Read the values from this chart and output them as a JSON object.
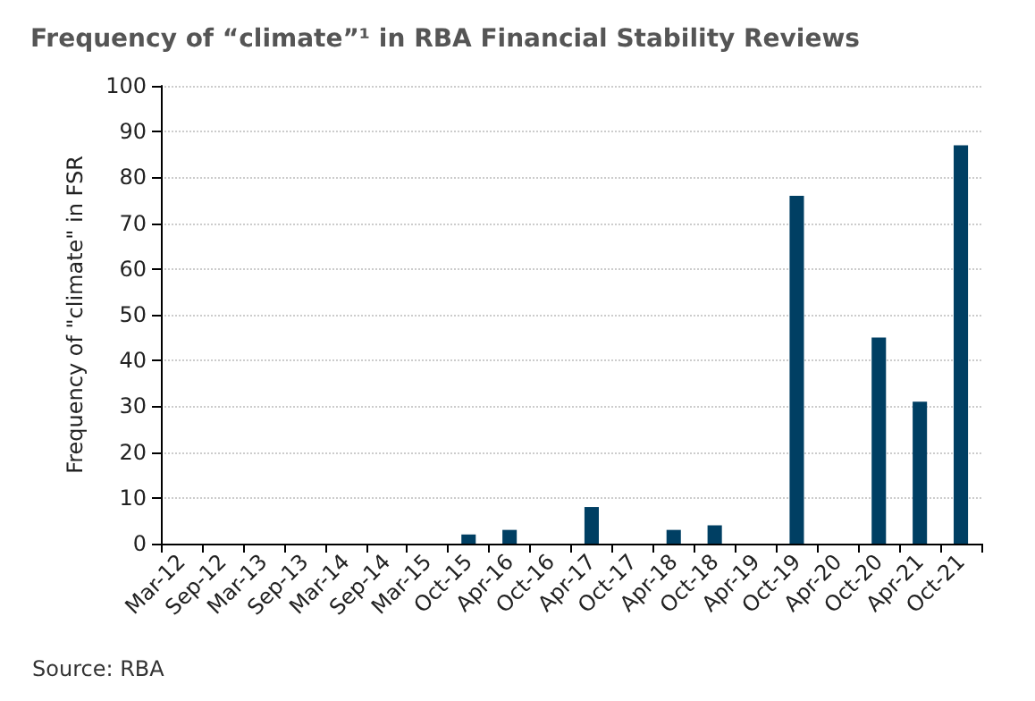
{
  "chart_data": {
    "type": "bar",
    "title": "Frequency of “climate”¹ in RBA Financial Stability Reviews",
    "ylabel": "Frequency of \"climate\" in FSR",
    "categories": [
      "Mar-12",
      "Sep-12",
      "Mar-13",
      "Sep-13",
      "Mar-14",
      "Sep-14",
      "Mar-15",
      "Oct-15",
      "Apr-16",
      "Oct-16",
      "Apr-17",
      "Oct-17",
      "Apr-18",
      "Oct-18",
      "Apr-19",
      "Oct-19",
      "Apr-20",
      "Oct-20",
      "Apr-21",
      "Oct-21"
    ],
    "values": [
      0,
      0,
      0,
      0,
      0,
      0,
      0,
      2,
      3,
      0,
      8,
      0,
      3,
      4,
      0,
      76,
      0,
      45,
      31,
      87
    ],
    "color": "#003f63",
    "ylim": [
      0,
      100
    ],
    "yticks": [
      0,
      10,
      20,
      30,
      40,
      50,
      60,
      70,
      80,
      90,
      100
    ],
    "grid": "y",
    "annotations": [
      "Source: RBA"
    ]
  }
}
